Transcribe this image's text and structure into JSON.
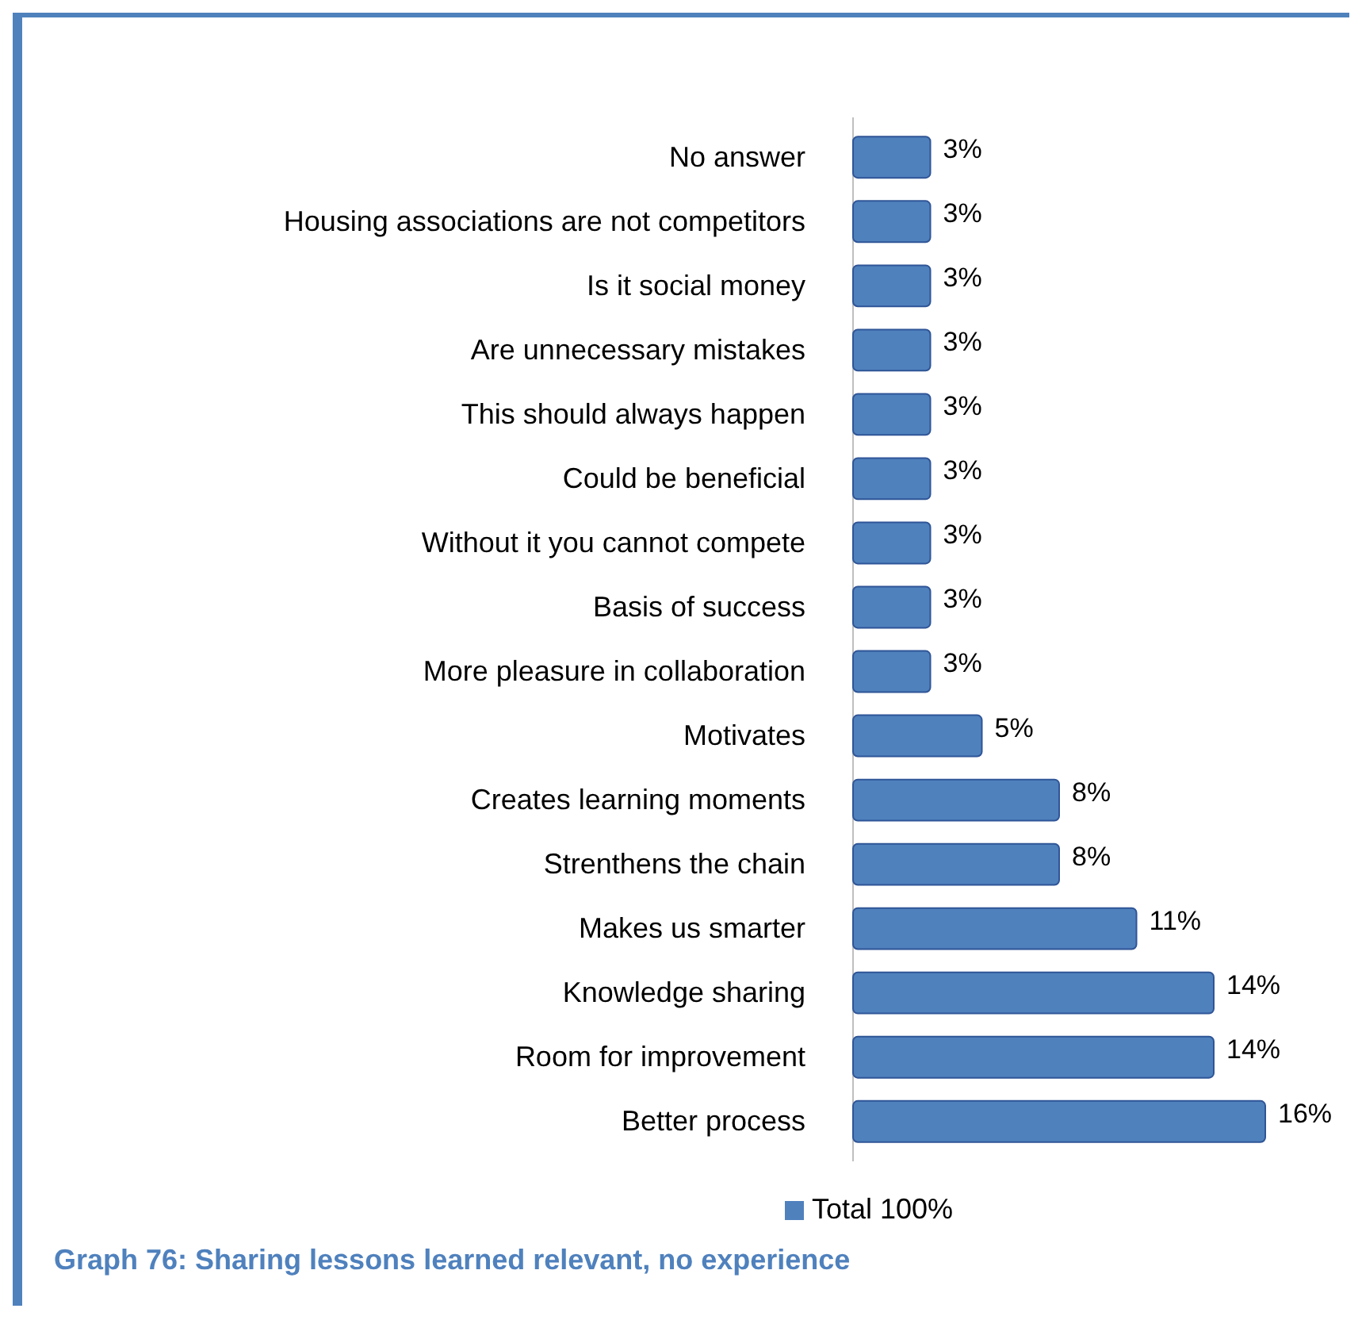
{
  "chart_data": {
    "type": "bar",
    "orientation": "horizontal",
    "title": "Graph 76: Sharing lessons learned relevant, no experience",
    "categories": [
      "No answer",
      "Housing associations are not competitors",
      "Is it social money",
      "Are unnecessary mistakes",
      "This should always happen",
      "Could be beneficial",
      "Without it you cannot compete",
      "Basis of success",
      "More pleasure in collaboration",
      "Motivates",
      "Creates learning moments",
      "Strenthens the chain",
      "Makes us smarter",
      "Knowledge sharing",
      "Room for improvement",
      "Better process"
    ],
    "series": [
      {
        "name": "Total 100%",
        "color": "#4f81bd",
        "values": [
          3,
          3,
          3,
          3,
          3,
          3,
          3,
          3,
          3,
          5,
          8,
          8,
          11,
          14,
          14,
          16
        ],
        "value_labels": [
          "3%",
          "3%",
          "3%",
          "3%",
          "3%",
          "3%",
          "3%",
          "3%",
          "3%",
          "5%",
          "8%",
          "8%",
          "11%",
          "14%",
          "14%",
          "16%"
        ]
      }
    ],
    "legend": "bottom"
  }
}
